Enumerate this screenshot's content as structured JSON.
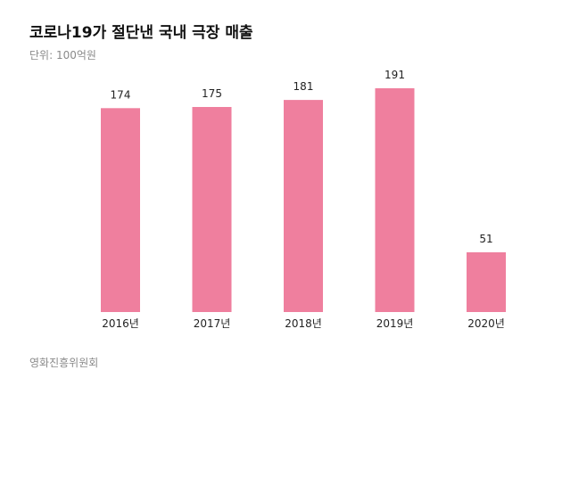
{
  "chart_data": {
    "type": "bar",
    "title": "코로나19가 절단낸 국내 극장 매출",
    "subtitle": "단위: 100억원",
    "source": "영화진흥위원회",
    "categories": [
      "2016년",
      "2017년",
      "2018년",
      "2019년",
      "2020년"
    ],
    "values": [
      174,
      175,
      181,
      191,
      51
    ],
    "ylim": [
      0,
      191
    ],
    "grid": false,
    "legend": "none",
    "bar_color": "#ef7f9e"
  }
}
